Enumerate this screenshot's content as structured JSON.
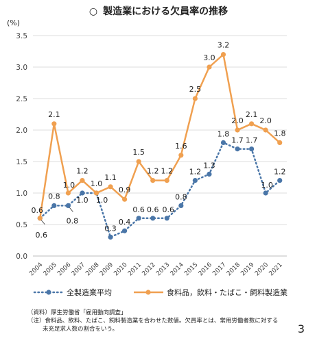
{
  "title": "製造業における欠員率の推移",
  "title_mark": "○",
  "chart_data": {
    "type": "line",
    "ylabel": "(%)",
    "ylim": [
      0,
      3.5
    ],
    "yticks": [
      "0.0",
      "0.5",
      "1.0",
      "1.5",
      "2.0",
      "2.5",
      "3.0",
      "3.5"
    ],
    "x": [
      "2004",
      "2005",
      "2006",
      "2007",
      "2008",
      "2009",
      "2010",
      "2011",
      "2012",
      "2013",
      "2014",
      "2015",
      "2016",
      "2017",
      "2018",
      "2019",
      "2020",
      "2021"
    ],
    "legend_position": "bottom",
    "grid": true,
    "series": [
      {
        "name": "全製造業平均",
        "color": "#4a76a8",
        "style": "dotted",
        "values": [
          0.6,
          0.8,
          0.8,
          1.0,
          1.0,
          0.3,
          0.4,
          0.6,
          0.6,
          0.6,
          0.8,
          1.2,
          1.3,
          1.8,
          1.7,
          1.7,
          1.0,
          1.2
        ]
      },
      {
        "name": "食料品，飲料・たばこ・飼料製造業",
        "color": "#f0a050",
        "style": "solid",
        "values": [
          0.6,
          2.1,
          1.0,
          1.2,
          1.0,
          1.1,
          0.9,
          1.5,
          1.2,
          1.2,
          1.6,
          2.5,
          3.0,
          3.2,
          2.0,
          2.1,
          2.0,
          1.8
        ]
      }
    ]
  },
  "notes": [
    "（資料）厚生労働省「雇用動向調査」",
    "（注）食料品、飲料、たばこ、飼料製造業を合わせた数値。欠員率とは、常用労働者数に対する",
    "未充足求人数の割合をいう。"
  ],
  "page_number": "3"
}
